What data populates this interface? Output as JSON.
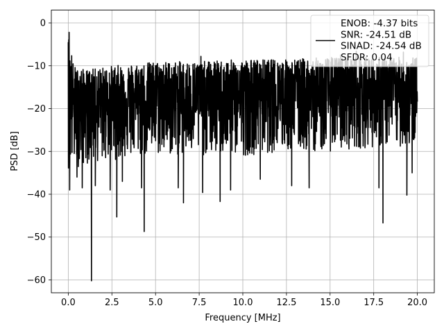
{
  "chart_data": {
    "type": "line",
    "title": "",
    "xlabel": "Frequency [MHz]",
    "ylabel": "PSD [dB]",
    "xlim": [
      -0.97,
      20.97
    ],
    "ylim": [
      -63,
      3
    ],
    "xticks": [
      0.0,
      2.5,
      5.0,
      7.5,
      10.0,
      12.5,
      15.0,
      17.5,
      20.0
    ],
    "xtick_labels": [
      "0.0",
      "2.5",
      "5.0",
      "7.5",
      "10.0",
      "12.5",
      "15.0",
      "17.5",
      "20.0"
    ],
    "yticks": [
      0,
      -10,
      -20,
      -30,
      -40,
      -50,
      -60
    ],
    "ytick_labels": [
      "0",
      "−10",
      "−20",
      "−30",
      "−40",
      "−50",
      "−60"
    ],
    "grid": true,
    "legend_position": "top-right",
    "series": [
      {
        "name": "ENOB: -4.37 bits\nSNR: -24.51 dB\nSINAD: -24.54 dB\nSFDR: 0.04",
        "color": "#000000",
        "x_start": 0,
        "x_end": 20,
        "n_points": 2048,
        "envelope": {
          "x": [
            0,
            0.05,
            0.3,
            1.0,
            2.5,
            5.0,
            7.5,
            10.0,
            12.5,
            15.0,
            17.5,
            20.0
          ],
          "upper": [
            -4,
            -2,
            -10,
            -11,
            -10,
            -9,
            -9,
            -8.5,
            -8.5,
            -8,
            -8,
            -8
          ],
          "median": [
            -16,
            -16,
            -19,
            -19,
            -18.5,
            -18,
            -18,
            -17.5,
            -17.5,
            -17,
            -17,
            -17
          ],
          "lower": [
            -34,
            -34,
            -34,
            -33,
            -32,
            -31,
            -31,
            -31,
            -30,
            -30,
            -29,
            -29
          ]
        },
        "spikes": [
          {
            "x": 0.0,
            "y": -4.5
          },
          {
            "x": 0.05,
            "y": -2.2
          },
          {
            "x": 0.08,
            "y": -39.0
          },
          {
            "x": 0.5,
            "y": -36.0
          },
          {
            "x": 0.8,
            "y": -38.5
          },
          {
            "x": 1.33,
            "y": -60.2
          },
          {
            "x": 1.55,
            "y": -38.0
          },
          {
            "x": 2.4,
            "y": -39.0
          },
          {
            "x": 2.78,
            "y": -45.3
          },
          {
            "x": 3.1,
            "y": -37.0
          },
          {
            "x": 4.35,
            "y": -48.7
          },
          {
            "x": 4.2,
            "y": -38.5
          },
          {
            "x": 6.3,
            "y": -38.5
          },
          {
            "x": 6.6,
            "y": -42.0
          },
          {
            "x": 7.7,
            "y": -39.6
          },
          {
            "x": 8.7,
            "y": -41.7
          },
          {
            "x": 9.3,
            "y": -39.0
          },
          {
            "x": 11.0,
            "y": -36.5
          },
          {
            "x": 12.8,
            "y": -38.0
          },
          {
            "x": 13.8,
            "y": -38.5
          },
          {
            "x": 17.8,
            "y": -38.5
          },
          {
            "x": 18.03,
            "y": -46.7
          },
          {
            "x": 19.4,
            "y": -40.2
          },
          {
            "x": 19.7,
            "y": -35.0
          },
          {
            "x": 18.5,
            "y": -8.0
          },
          {
            "x": 7.6,
            "y": -7.8
          },
          {
            "x": 15.6,
            "y": -7.5
          },
          {
            "x": 16.5,
            "y": -6.6
          },
          {
            "x": 19.2,
            "y": -6.8
          }
        ]
      }
    ]
  }
}
